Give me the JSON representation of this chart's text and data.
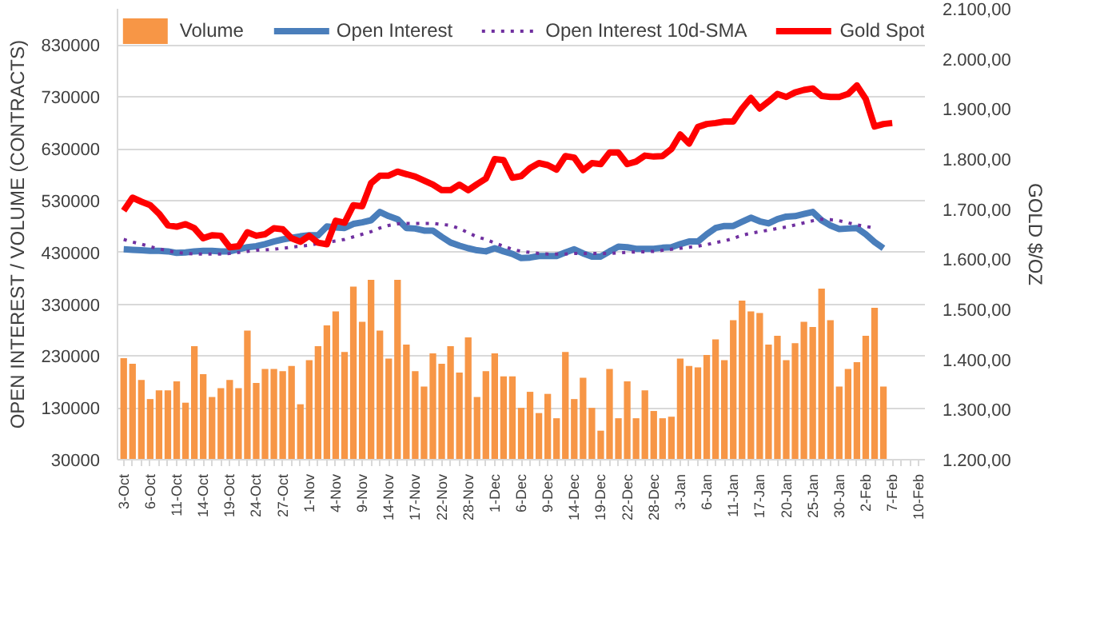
{
  "chart_data": {
    "type": "bar",
    "categories": [
      "3-Oct",
      null,
      null,
      "6-Oct",
      null,
      null,
      "11-Oct",
      null,
      null,
      "14-Oct",
      null,
      null,
      "19-Oct",
      null,
      null,
      "24-Oct",
      null,
      null,
      "27-Oct",
      null,
      null,
      "1-Nov",
      null,
      null,
      "4-Nov",
      null,
      null,
      "9-Nov",
      null,
      null,
      "14-Nov",
      null,
      null,
      "17-Nov",
      null,
      null,
      "22-Nov",
      null,
      null,
      "28-Nov",
      null,
      null,
      "1-Dec",
      null,
      null,
      "6-Dec",
      null,
      null,
      "9-Dec",
      null,
      null,
      "14-Dec",
      null,
      null,
      "19-Dec",
      null,
      null,
      "22-Dec",
      null,
      null,
      "28-Dec",
      null,
      null,
      "3-Jan",
      null,
      null,
      "6-Jan",
      null,
      null,
      "11-Jan",
      null,
      null,
      "17-Jan",
      null,
      null,
      "20-Jan",
      null,
      null,
      "25-Jan",
      null,
      null,
      "30-Jan",
      null,
      null,
      "2-Feb",
      null,
      null,
      "7-Feb",
      null,
      null,
      "10-Feb"
    ],
    "ylabel": "OPEN INTEREST / VOLUME (CONTRACTS)",
    "y2label": "GOLD $/OZ",
    "ylim": [
      30000,
      900000
    ],
    "yticks": [
      30000,
      130000,
      230000,
      330000,
      430000,
      530000,
      630000,
      730000,
      830000
    ],
    "y2lim": [
      1200,
      2100
    ],
    "y2ticks": [
      {
        "value": 1200,
        "label": "1.200,00"
      },
      {
        "value": 1300,
        "label": "1.300,00"
      },
      {
        "value": 1400,
        "label": "1.400,00"
      },
      {
        "value": 1500,
        "label": "1.500,00"
      },
      {
        "value": 1600,
        "label": "1.600,00"
      },
      {
        "value": 1700,
        "label": "1.700,00"
      },
      {
        "value": 1800,
        "label": "1.800,00"
      },
      {
        "value": 1900,
        "label": "1.900,00"
      },
      {
        "value": 2000,
        "label": "2.000,00"
      },
      {
        "value": 2100,
        "label": "2.100,00"
      }
    ],
    "grid": "y",
    "legend": "top",
    "series": [
      {
        "name": "Volume",
        "color": "#f79646",
        "values": [
          226000,
          215000,
          184000,
          147000,
          164000,
          164000,
          181000,
          140000,
          249000,
          195000,
          151000,
          168000,
          184000,
          168000,
          279000,
          178000,
          205000,
          205000,
          201000,
          211000,
          137000,
          222000,
          249000,
          289000,
          316000,
          238000,
          364000,
          296000,
          377000,
          279000,
          225000,
          377000,
          252000,
          201000,
          171000,
          235000,
          215000,
          249000,
          198000,
          266000,
          151000,
          201000,
          235000,
          191000,
          191000,
          130000,
          161000,
          120000,
          157000,
          110000,
          238000,
          147000,
          188000,
          130000,
          86000,
          205000,
          110000,
          181000,
          110000,
          164000,
          124000,
          110000,
          113000,
          225000,
          211000,
          208000,
          232000,
          262000,
          222000,
          299000,
          337000,
          316000,
          313000,
          252000,
          269000,
          222000,
          255000,
          296000,
          286000,
          360000,
          299000,
          171000,
          205000,
          218000,
          269000,
          323000,
          171000,
          null,
          null,
          null,
          null
        ]
      },
      {
        "name": "Open Interest",
        "type": "line",
        "line_style": "solid",
        "color": "#4a7ebb",
        "values": [
          436000,
          435000,
          434000,
          433000,
          433000,
          432000,
          429000,
          430000,
          432000,
          433000,
          433000,
          432000,
          432000,
          436000,
          440000,
          442000,
          446000,
          451000,
          455000,
          458000,
          461000,
          463000,
          463000,
          480000,
          478000,
          477000,
          485000,
          488000,
          492000,
          508000,
          500000,
          494000,
          477000,
          476000,
          472000,
          472000,
          460000,
          449000,
          443000,
          438000,
          434000,
          432000,
          438000,
          432000,
          427000,
          419000,
          420000,
          423000,
          423000,
          423000,
          430000,
          436000,
          428000,
          422000,
          422000,
          432000,
          441000,
          440000,
          437000,
          437000,
          437000,
          439000,
          440000,
          446000,
          451000,
          451000,
          465000,
          477000,
          481000,
          481000,
          489000,
          497000,
          490000,
          486000,
          494000,
          499000,
          500000,
          504000,
          508000,
          492000,
          482000,
          475000,
          476000,
          477000,
          465000,
          450000,
          438000,
          null,
          null,
          null,
          null
        ]
      },
      {
        "name": "Open Interest 10d-SMA",
        "type": "line",
        "line_style": "dotted",
        "color": "#7030a0",
        "values": [
          455000,
          450000,
          446000,
          441000,
          437000,
          433000,
          430000,
          428000,
          427000,
          427000,
          427000,
          427000,
          428000,
          430000,
          432000,
          434000,
          435000,
          436000,
          438000,
          440000,
          442000,
          444000,
          447000,
          450000,
          452000,
          455000,
          460000,
          465000,
          470000,
          477000,
          482000,
          485000,
          486000,
          486000,
          486000,
          486000,
          484000,
          482000,
          476000,
          468000,
          460000,
          455000,
          448000,
          442000,
          436000,
          432000,
          430000,
          428000,
          427000,
          427000,
          427000,
          428000,
          428000,
          428000,
          428000,
          428000,
          429000,
          430000,
          431000,
          431000,
          432000,
          434000,
          436000,
          438000,
          440000,
          442000,
          445000,
          449000,
          452000,
          457000,
          463000,
          467000,
          470000,
          473000,
          476000,
          479000,
          483000,
          487000,
          491000,
          494000,
          493000,
          491000,
          487000,
          483000,
          480000,
          477000,
          null,
          null,
          null,
          null,
          null
        ]
      },
      {
        "name": "Gold Spot",
        "type": "line",
        "line_style": "solid",
        "axis": "y2",
        "color": "#ff0000",
        "values": [
          1697,
          1723,
          1715,
          1708,
          1691,
          1668,
          1665,
          1670,
          1662,
          1642,
          1648,
          1647,
          1624,
          1626,
          1654,
          1647,
          1650,
          1662,
          1660,
          1642,
          1635,
          1647,
          1633,
          1630,
          1677,
          1673,
          1708,
          1706,
          1752,
          1767,
          1767,
          1775,
          1770,
          1765,
          1757,
          1749,
          1738,
          1738,
          1749,
          1738,
          1750,
          1761,
          1800,
          1798,
          1763,
          1766,
          1782,
          1792,
          1788,
          1779,
          1806,
          1803,
          1778,
          1792,
          1790,
          1813,
          1813,
          1790,
          1795,
          1807,
          1805,
          1806,
          1820,
          1849,
          1831,
          1864,
          1870,
          1872,
          1875,
          1875,
          1901,
          1922,
          1901,
          1915,
          1930,
          1924,
          1933,
          1938,
          1941,
          1926,
          1924,
          1924,
          1930,
          1947,
          1920,
          1865,
          1870,
          1872,
          null,
          null,
          null
        ]
      }
    ]
  }
}
